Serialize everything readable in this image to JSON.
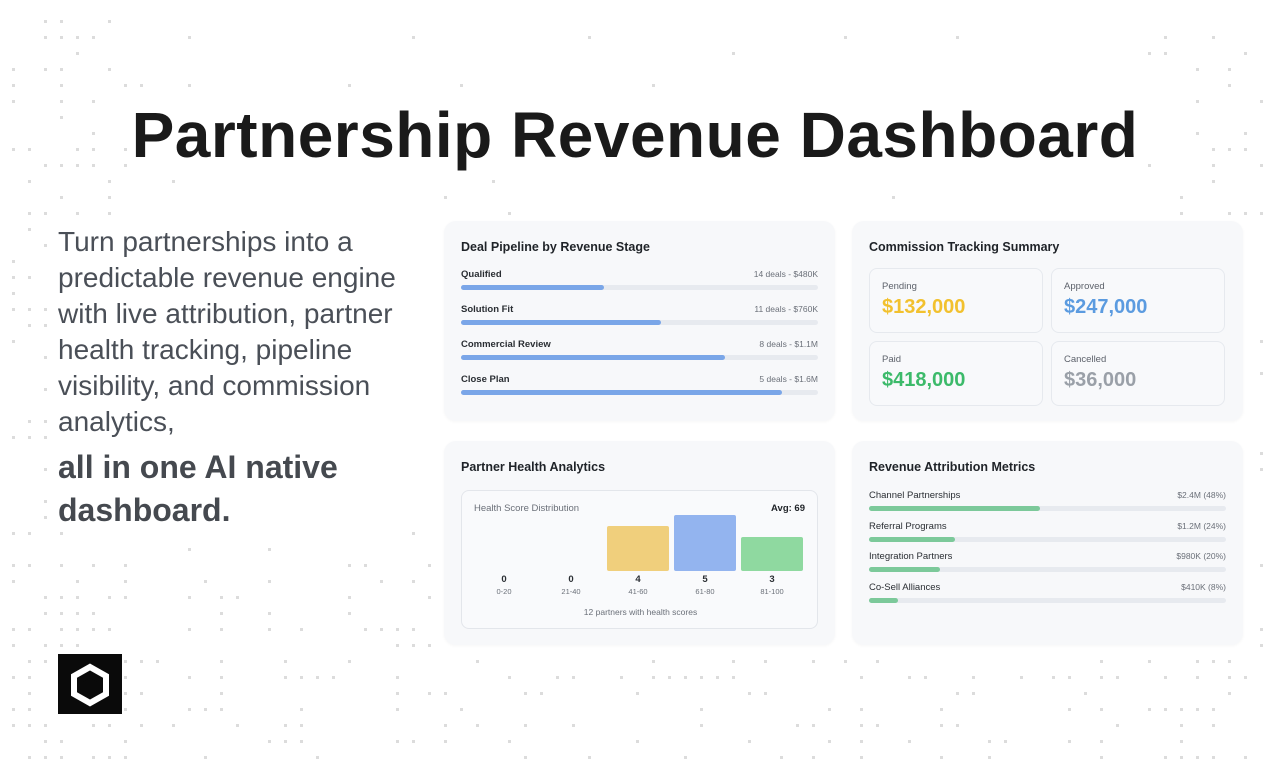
{
  "headline": "Partnership Revenue Dashboard",
  "tagline": {
    "text": "Turn partnerships into a predictable revenue engine with live attribution, partner health tracking, pipeline visibility, and commission analytics,",
    "strong": "all in one AI native dashboard."
  },
  "logo_icon": "hexagon-logo-icon",
  "pipeline": {
    "title": "Deal Pipeline by Revenue Stage",
    "stages": [
      {
        "label": "Qualified",
        "meta": "14 deals - $480K",
        "progress": 0.4
      },
      {
        "label": "Solution Fit",
        "meta": "11 deals - $760K",
        "progress": 0.56
      },
      {
        "label": "Commercial Review",
        "meta": "8 deals - $1.1M",
        "progress": 0.74
      },
      {
        "label": "Close Plan",
        "meta": "5 deals - $1.6M",
        "progress": 0.9
      }
    ],
    "bar_color": "#7aa6e8"
  },
  "commission": {
    "title": "Commission Tracking Summary",
    "tiles": [
      {
        "label": "Pending",
        "value": "$132,000",
        "color": "#f2c12e"
      },
      {
        "label": "Approved",
        "value": "$247,000",
        "color": "#5b9be0"
      },
      {
        "label": "Paid",
        "value": "$418,000",
        "color": "#3cba6a"
      },
      {
        "label": "Cancelled",
        "value": "$36,000",
        "color": "#9aa0a8"
      }
    ]
  },
  "health": {
    "title": "Partner Health Analytics",
    "panel_title": "Health Score Distribution",
    "avg": "Avg: 69",
    "footer": "12 partners with health scores",
    "chart_data": {
      "type": "bar",
      "categories": [
        "0-20",
        "21-40",
        "41-60",
        "61-80",
        "81-100"
      ],
      "values": [
        0,
        0,
        4,
        5,
        3
      ],
      "colors": [
        "#f0cf7c",
        "#f0cf7c",
        "#f0cf7c",
        "#93b4ef",
        "#8fd9a0"
      ],
      "title": "Health Score Distribution",
      "ylim": [
        0,
        5
      ]
    }
  },
  "attribution": {
    "title": "Revenue Attribution Metrics",
    "rows": [
      {
        "label": "Channel Partnerships",
        "meta": "$2.4M (48%)",
        "progress": 0.48
      },
      {
        "label": "Referral Programs",
        "meta": "$1.2M (24%)",
        "progress": 0.24
      },
      {
        "label": "Integration Partners",
        "meta": "$980K (20%)",
        "progress": 0.2
      },
      {
        "label": "Co-Sell Alliances",
        "meta": "$410K (8%)",
        "progress": 0.08
      }
    ],
    "bar_color": "#7cc99a"
  }
}
